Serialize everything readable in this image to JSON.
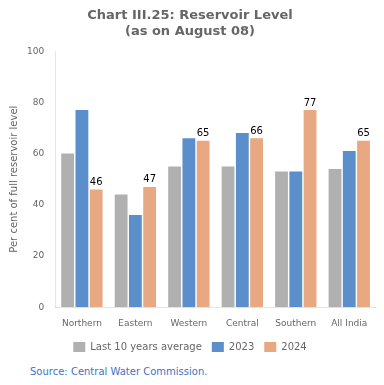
{
  "chart_data": {
    "type": "bar",
    "title": "Chart III.25: Reservoir Level\n(as on August 08)",
    "categories": [
      "Northern",
      "Eastern",
      "Western",
      "Central",
      "Southern",
      "All India"
    ],
    "series": [
      {
        "name": "Last 10 years average",
        "color": "#b0b0b0",
        "values": [
          60,
          44,
          55,
          55,
          53,
          54
        ]
      },
      {
        "name": "2023",
        "color": "#5b8fcb",
        "values": [
          77,
          36,
          66,
          68,
          53,
          61
        ]
      },
      {
        "name": "2024",
        "color": "#e8a882",
        "values": [
          46,
          47,
          65,
          66,
          77,
          65
        ],
        "data_labels": true
      }
    ],
    "ylabel": "Per cent of full reservoir level",
    "ylim": [
      0,
      100
    ],
    "yticks": [
      0,
      20,
      40,
      60,
      80,
      100
    ],
    "grid": false,
    "legend": "bottom",
    "source": "Source: Central Water Commission."
  }
}
